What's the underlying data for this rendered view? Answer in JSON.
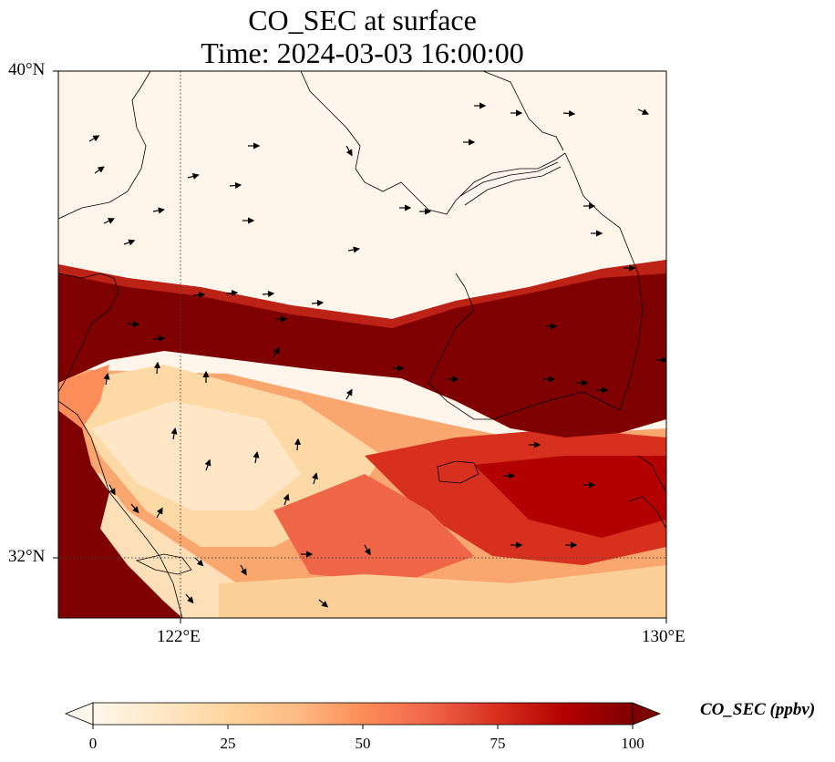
{
  "title": {
    "line1": "CO_SEC at surface",
    "line2": "Time: 2024-03-03 16:00:00"
  },
  "map": {
    "lat_labels": [
      "40°N",
      "32°N"
    ],
    "lon_labels": [
      "122°E",
      "130°E"
    ],
    "extent": {
      "lon_min": 120,
      "lon_max": 130,
      "lat_min": 31,
      "lat_max": 40
    },
    "gridlines": {
      "lon": [
        122
      ],
      "lat": [
        32
      ],
      "style": "dotted"
    },
    "colormap": "OrRd",
    "field_description": "concentration field",
    "wind_vectors": true
  },
  "colorbar": {
    "label": "CO_SEC (ppbv)",
    "ticks": [
      "0",
      "25",
      "50",
      "75",
      "100"
    ],
    "min": 0,
    "max": 100,
    "extend": "both",
    "colors": [
      "#fff7ec",
      "#fee8c8",
      "#fdd49e",
      "#fdbb84",
      "#fc8d59",
      "#ef6548",
      "#d7301f",
      "#b30000",
      "#7f0000"
    ]
  }
}
